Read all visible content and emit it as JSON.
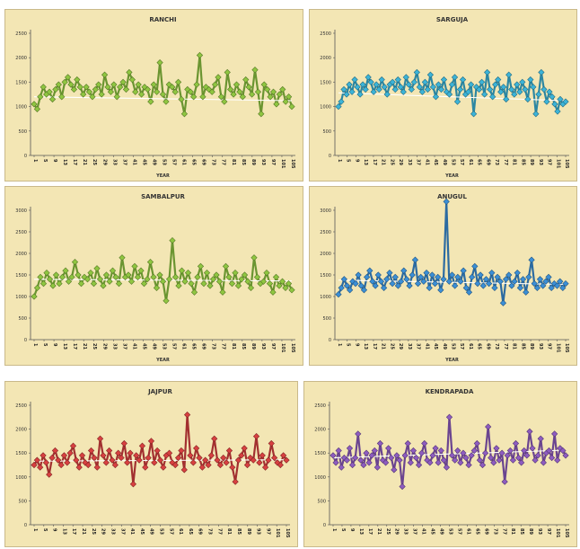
{
  "chart_data": [
    {
      "type": "line",
      "title": "RANCHI",
      "xlabel": "YEAR",
      "ylabel": "",
      "ylim": [
        0,
        2500
      ],
      "yticks": [
        "0",
        "500",
        "1000",
        "1500",
        "2000",
        "2500"
      ],
      "x_tick_labels": [
        "1",
        "5",
        "9",
        "13",
        "17",
        "21",
        "25",
        "29",
        "33",
        "37",
        "41",
        "45",
        "49",
        "53",
        "57",
        "61",
        "65",
        "69",
        "73",
        "77",
        "81",
        "85",
        "89",
        "93",
        "97",
        "101",
        "105"
      ],
      "color": "#8fc641",
      "series": [
        {
          "values": [
            1050,
            950,
            1200,
            1400,
            1250,
            1300,
            1150,
            1350,
            1450,
            1200,
            1500,
            1600,
            1450,
            1350,
            1550,
            1400,
            1250,
            1400,
            1300,
            1200,
            1350,
            1450,
            1250,
            1650,
            1400,
            1300,
            1450,
            1200,
            1400,
            1500,
            1350,
            1700,
            1550,
            1300,
            1450,
            1250,
            1400,
            1350,
            1100,
            1450,
            1300,
            1900,
            1250,
            1100,
            1450,
            1400,
            1300,
            1500,
            1150,
            850,
            1350,
            1300,
            1200,
            1450,
            2050,
            1200,
            1400,
            1350,
            1300,
            1450,
            1600,
            1200,
            1100,
            1700,
            1350,
            1250,
            1450,
            1300,
            1200,
            1550,
            1400,
            1250,
            1750,
            1300,
            850,
            1450,
            1350,
            1200,
            1300,
            1050,
            1250,
            1350,
            1100,
            1200,
            1000
          ]
        }
      ],
      "trend": [
        1200,
        1120
      ]
    },
    {
      "type": "line",
      "title": "SARGUJA",
      "xlabel": "YEAR",
      "ylabel": "",
      "ylim": [
        0,
        2500
      ],
      "yticks": [
        "0",
        "500",
        "1000",
        "1500",
        "2000",
        "2500"
      ],
      "x_tick_labels": [
        "1",
        "5",
        "9",
        "13",
        "17",
        "21",
        "25",
        "29",
        "33",
        "37",
        "41",
        "45",
        "49",
        "53",
        "57",
        "61",
        "65",
        "69",
        "73",
        "77",
        "81",
        "85",
        "89",
        "93",
        "97",
        "101",
        "105"
      ],
      "color": "#3cb4d8",
      "series": [
        {
          "values": [
            1000,
            1100,
            1350,
            1250,
            1450,
            1300,
            1550,
            1400,
            1250,
            1450,
            1350,
            1600,
            1500,
            1300,
            1450,
            1350,
            1550,
            1400,
            1250,
            1450,
            1500,
            1350,
            1550,
            1400,
            1300,
            1600,
            1450,
            1350,
            1500,
            1700,
            1400,
            1300,
            1500,
            1350,
            1650,
            1400,
            1200,
            1450,
            1350,
            1550,
            1300,
            1250,
            1450,
            1600,
            1100,
            1350,
            1550,
            1250,
            1300,
            1450,
            850,
            1400,
            1350,
            1500,
            1250,
            1700,
            1350,
            1200,
            1450,
            1550,
            1300,
            1400,
            1150,
            1650,
            1350,
            1250,
            1450,
            1300,
            1500,
            1350,
            1150,
            1550,
            1400,
            850,
            1250,
            1700,
            1350,
            1100,
            1300,
            1200,
            1050,
            900,
            1150,
            1050,
            1100
          ]
        }
      ],
      "trend": [
        1280,
        1120
      ]
    },
    {
      "type": "line",
      "title": "SAMBALPUR",
      "xlabel": "YEAR",
      "ylabel": "",
      "ylim": [
        0,
        3000
      ],
      "yticks": [
        "0",
        "500",
        "1000",
        "1500",
        "2000",
        "2500",
        "3000"
      ],
      "x_tick_labels": [
        "1",
        "5",
        "9",
        "13",
        "17",
        "21",
        "25",
        "29",
        "33",
        "37",
        "41",
        "45",
        "49",
        "53",
        "57",
        "61",
        "65",
        "69",
        "73",
        "77",
        "81",
        "85",
        "89",
        "93",
        "97",
        "101",
        "105"
      ],
      "color": "#8fc641",
      "series": [
        {
          "values": [
            1000,
            1200,
            1450,
            1300,
            1550,
            1400,
            1250,
            1500,
            1300,
            1450,
            1600,
            1350,
            1450,
            1800,
            1500,
            1300,
            1450,
            1400,
            1550,
            1300,
            1650,
            1400,
            1250,
            1500,
            1350,
            1600,
            1450,
            1300,
            1900,
            1450,
            1500,
            1350,
            1700,
            1450,
            1600,
            1300,
            1400,
            1800,
            1450,
            1200,
            1500,
            1350,
            900,
            1400,
            2300,
            1450,
            1250,
            1600,
            1350,
            1550,
            1300,
            1100,
            1450,
            1700,
            1300,
            1550,
            1250,
            1400,
            1500,
            1350,
            1100,
            1700,
            1450,
            1300,
            1550,
            1250,
            1400,
            1500,
            1350,
            1200,
            1900,
            1450,
            1300,
            1350,
            1550,
            1300,
            1100,
            1450,
            1250,
            1350,
            1200,
            1300,
            1150
          ]
        }
      ],
      "trend": [
        1400,
        1360
      ]
    },
    {
      "type": "line",
      "title": "ANUGUL",
      "xlabel": "YEAR",
      "ylabel": "",
      "ylim": [
        0,
        3000
      ],
      "yticks": [
        "0",
        "500",
        "1000",
        "1500",
        "2000",
        "2500",
        "3000"
      ],
      "x_tick_labels": [
        "1",
        "5",
        "9",
        "13",
        "17",
        "21",
        "25",
        "29",
        "33",
        "37",
        "41",
        "45",
        "49",
        "53",
        "57",
        "61",
        "65",
        "69",
        "73",
        "77",
        "81",
        "85",
        "89",
        "93",
        "97",
        "101",
        "105"
      ],
      "color": "#3b8fd6",
      "series": [
        {
          "values": [
            1050,
            1200,
            1400,
            1250,
            1150,
            1350,
            1300,
            1500,
            1250,
            1150,
            1450,
            1600,
            1350,
            1250,
            1500,
            1350,
            1200,
            1400,
            1550,
            1300,
            1450,
            1250,
            1350,
            1600,
            1400,
            1250,
            1500,
            1850,
            1300,
            1450,
            1350,
            1550,
            1200,
            1500,
            1300,
            1450,
            1150,
            1400,
            3200,
            1350,
            1500,
            1250,
            1450,
            1350,
            1600,
            1200,
            1100,
            1450,
            1700,
            1300,
            1500,
            1250,
            1400,
            1300,
            1550,
            1200,
            1450,
            1350,
            850,
            1400,
            1500,
            1250,
            1350,
            1550,
            1200,
            1400,
            1100,
            1450,
            1850,
            1300,
            1200,
            1400,
            1250,
            1350,
            1450,
            1200,
            1300,
            1250,
            1350,
            1200,
            1300
          ]
        }
      ],
      "trend": [
        1380,
        1280
      ]
    },
    {
      "type": "line",
      "title": "JAJPUR",
      "xlabel": "",
      "ylabel": "",
      "ylim": [
        0,
        2500
      ],
      "yticks": [
        "0",
        "500",
        "1000",
        "1500",
        "2000",
        "2500"
      ],
      "x_tick_labels": [
        "1",
        "5",
        "9",
        "13",
        "17",
        "21",
        "25",
        "29",
        "33",
        "37",
        "41",
        "45",
        "49",
        "53",
        "57",
        "61",
        "65",
        "69",
        "73",
        "77",
        "81",
        "85",
        "89",
        "93",
        "97",
        "101",
        "105"
      ],
      "color": "#d84040",
      "series": [
        {
          "values": [
            1250,
            1350,
            1200,
            1450,
            1300,
            1050,
            1400,
            1550,
            1350,
            1250,
            1450,
            1300,
            1500,
            1650,
            1350,
            1200,
            1450,
            1300,
            1250,
            1550,
            1400,
            1200,
            1800,
            1450,
            1300,
            1550,
            1350,
            1250,
            1500,
            1400,
            1700,
            1300,
            1500,
            850,
            1450,
            1350,
            1650,
            1200,
            1400,
            1750,
            1300,
            1550,
            1350,
            1200,
            1450,
            1500,
            1300,
            1250,
            1400,
            1550,
            1150,
            2300,
            1450,
            1300,
            1600,
            1400,
            1200,
            1350,
            1250,
            1450,
            1800,
            1350,
            1250,
            1400,
            1300,
            1550,
            1200,
            900,
            1350,
            1450,
            1600,
            1250,
            1400,
            1350,
            1850,
            1300,
            1450,
            1200,
            1350,
            1700,
            1400,
            1300,
            1250,
            1450,
            1350
          ]
        }
      ],
      "trend": [
        1330,
        1360
      ]
    },
    {
      "type": "line",
      "title": "KENDRAPADA",
      "xlabel": "",
      "ylabel": "",
      "ylim": [
        0,
        2500
      ],
      "yticks": [
        "0",
        "500",
        "1000",
        "1500",
        "2000",
        "2500"
      ],
      "x_tick_labels": [
        "1",
        "5",
        "9",
        "13",
        "17",
        "21",
        "25",
        "29",
        "33",
        "37",
        "41",
        "45",
        "49",
        "53",
        "57",
        "61",
        "65",
        "69",
        "73",
        "77",
        "81",
        "85",
        "89",
        "93",
        "97",
        "101",
        "105"
      ],
      "color": "#8e5cc0",
      "series": [
        {
          "values": [
            1450,
            1300,
            1550,
            1200,
            1400,
            1350,
            1600,
            1250,
            1400,
            1900,
            1350,
            1250,
            1500,
            1300,
            1450,
            1550,
            1200,
            1700,
            1350,
            1300,
            1600,
            1400,
            1150,
            1450,
            1350,
            800,
            1450,
            1700,
            1300,
            1550,
            1400,
            1250,
            1500,
            1700,
            1350,
            1300,
            1450,
            1600,
            1300,
            1550,
            1350,
            1200,
            2250,
            1450,
            1350,
            1550,
            1300,
            1500,
            1400,
            1250,
            1450,
            1550,
            1700,
            1350,
            1250,
            1500,
            2050,
            1400,
            1300,
            1600,
            1350,
            1500,
            900,
            1450,
            1550,
            1350,
            1700,
            1400,
            1300,
            1550,
            1450,
            1950,
            1600,
            1350,
            1450,
            1800,
            1300,
            1500,
            1550,
            1400,
            1900,
            1350,
            1600,
            1550,
            1450
          ]
        }
      ],
      "trend": [
        1400,
        1560
      ]
    }
  ]
}
